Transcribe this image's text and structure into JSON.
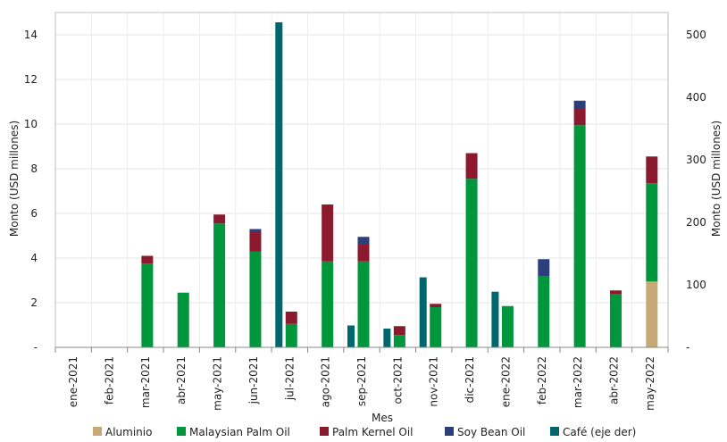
{
  "chart_data": {
    "type": "bar",
    "stacked": true,
    "categories": [
      "ene-2021",
      "feb-2021",
      "mar-2021",
      "abr-2021",
      "may-2021",
      "jun-2021",
      "jul-2021",
      "ago-2021",
      "sep-2021",
      "oct-2021",
      "nov-2021",
      "dic-2021",
      "ene-2022",
      "feb-2022",
      "mar-2022",
      "abr-2022",
      "may-2022"
    ],
    "xlabel": "Mes",
    "ylabel": "Monto (USD millones)",
    "ylabel_right": "Monto (USD millones)",
    "ylim": [
      0,
      15
    ],
    "ylim_right": [
      0,
      535.7
    ],
    "yticks": [
      0,
      2,
      4,
      6,
      8,
      10,
      12,
      14
    ],
    "yticks_right": [
      0,
      100,
      200,
      300,
      400,
      500
    ],
    "zero_label": "-",
    "grid": true,
    "legend_position": "bottom",
    "series": [
      {
        "name": "Aluminio",
        "color": "#c8a874",
        "axis": "left",
        "values": [
          0,
          0,
          0,
          0,
          0,
          0,
          0,
          0,
          0,
          0,
          0,
          0,
          0,
          0,
          0,
          0,
          2.95
        ]
      },
      {
        "name": "Malaysian Palm Oil",
        "color": "#00963c",
        "axis": "left",
        "values": [
          0,
          0,
          3.75,
          2.45,
          5.55,
          4.3,
          1.05,
          3.85,
          3.85,
          0.55,
          1.8,
          7.55,
          1.85,
          3.2,
          9.95,
          2.4,
          4.4
        ]
      },
      {
        "name": "Palm Kernel Oil",
        "color": "#8b1a2e",
        "axis": "left",
        "values": [
          0,
          0,
          0.35,
          0,
          0.4,
          0.9,
          0.55,
          2.55,
          0.75,
          0.4,
          0.15,
          1.15,
          0,
          0,
          0.75,
          0.15,
          1.2
        ]
      },
      {
        "name": "Soy Bean Oil",
        "color": "#2b3f7a",
        "axis": "left",
        "values": [
          0,
          0,
          0,
          0,
          0,
          0.1,
          0,
          0,
          0.35,
          0,
          0,
          0,
          0,
          0.75,
          0.35,
          0,
          0
        ]
      },
      {
        "name": "Café (eje der)",
        "color": "#00666e",
        "axis": "right",
        "values": [
          0,
          0,
          0,
          0,
          0,
          0,
          520,
          0,
          35,
          30,
          112,
          0,
          89,
          0,
          0,
          0,
          0
        ]
      }
    ]
  }
}
